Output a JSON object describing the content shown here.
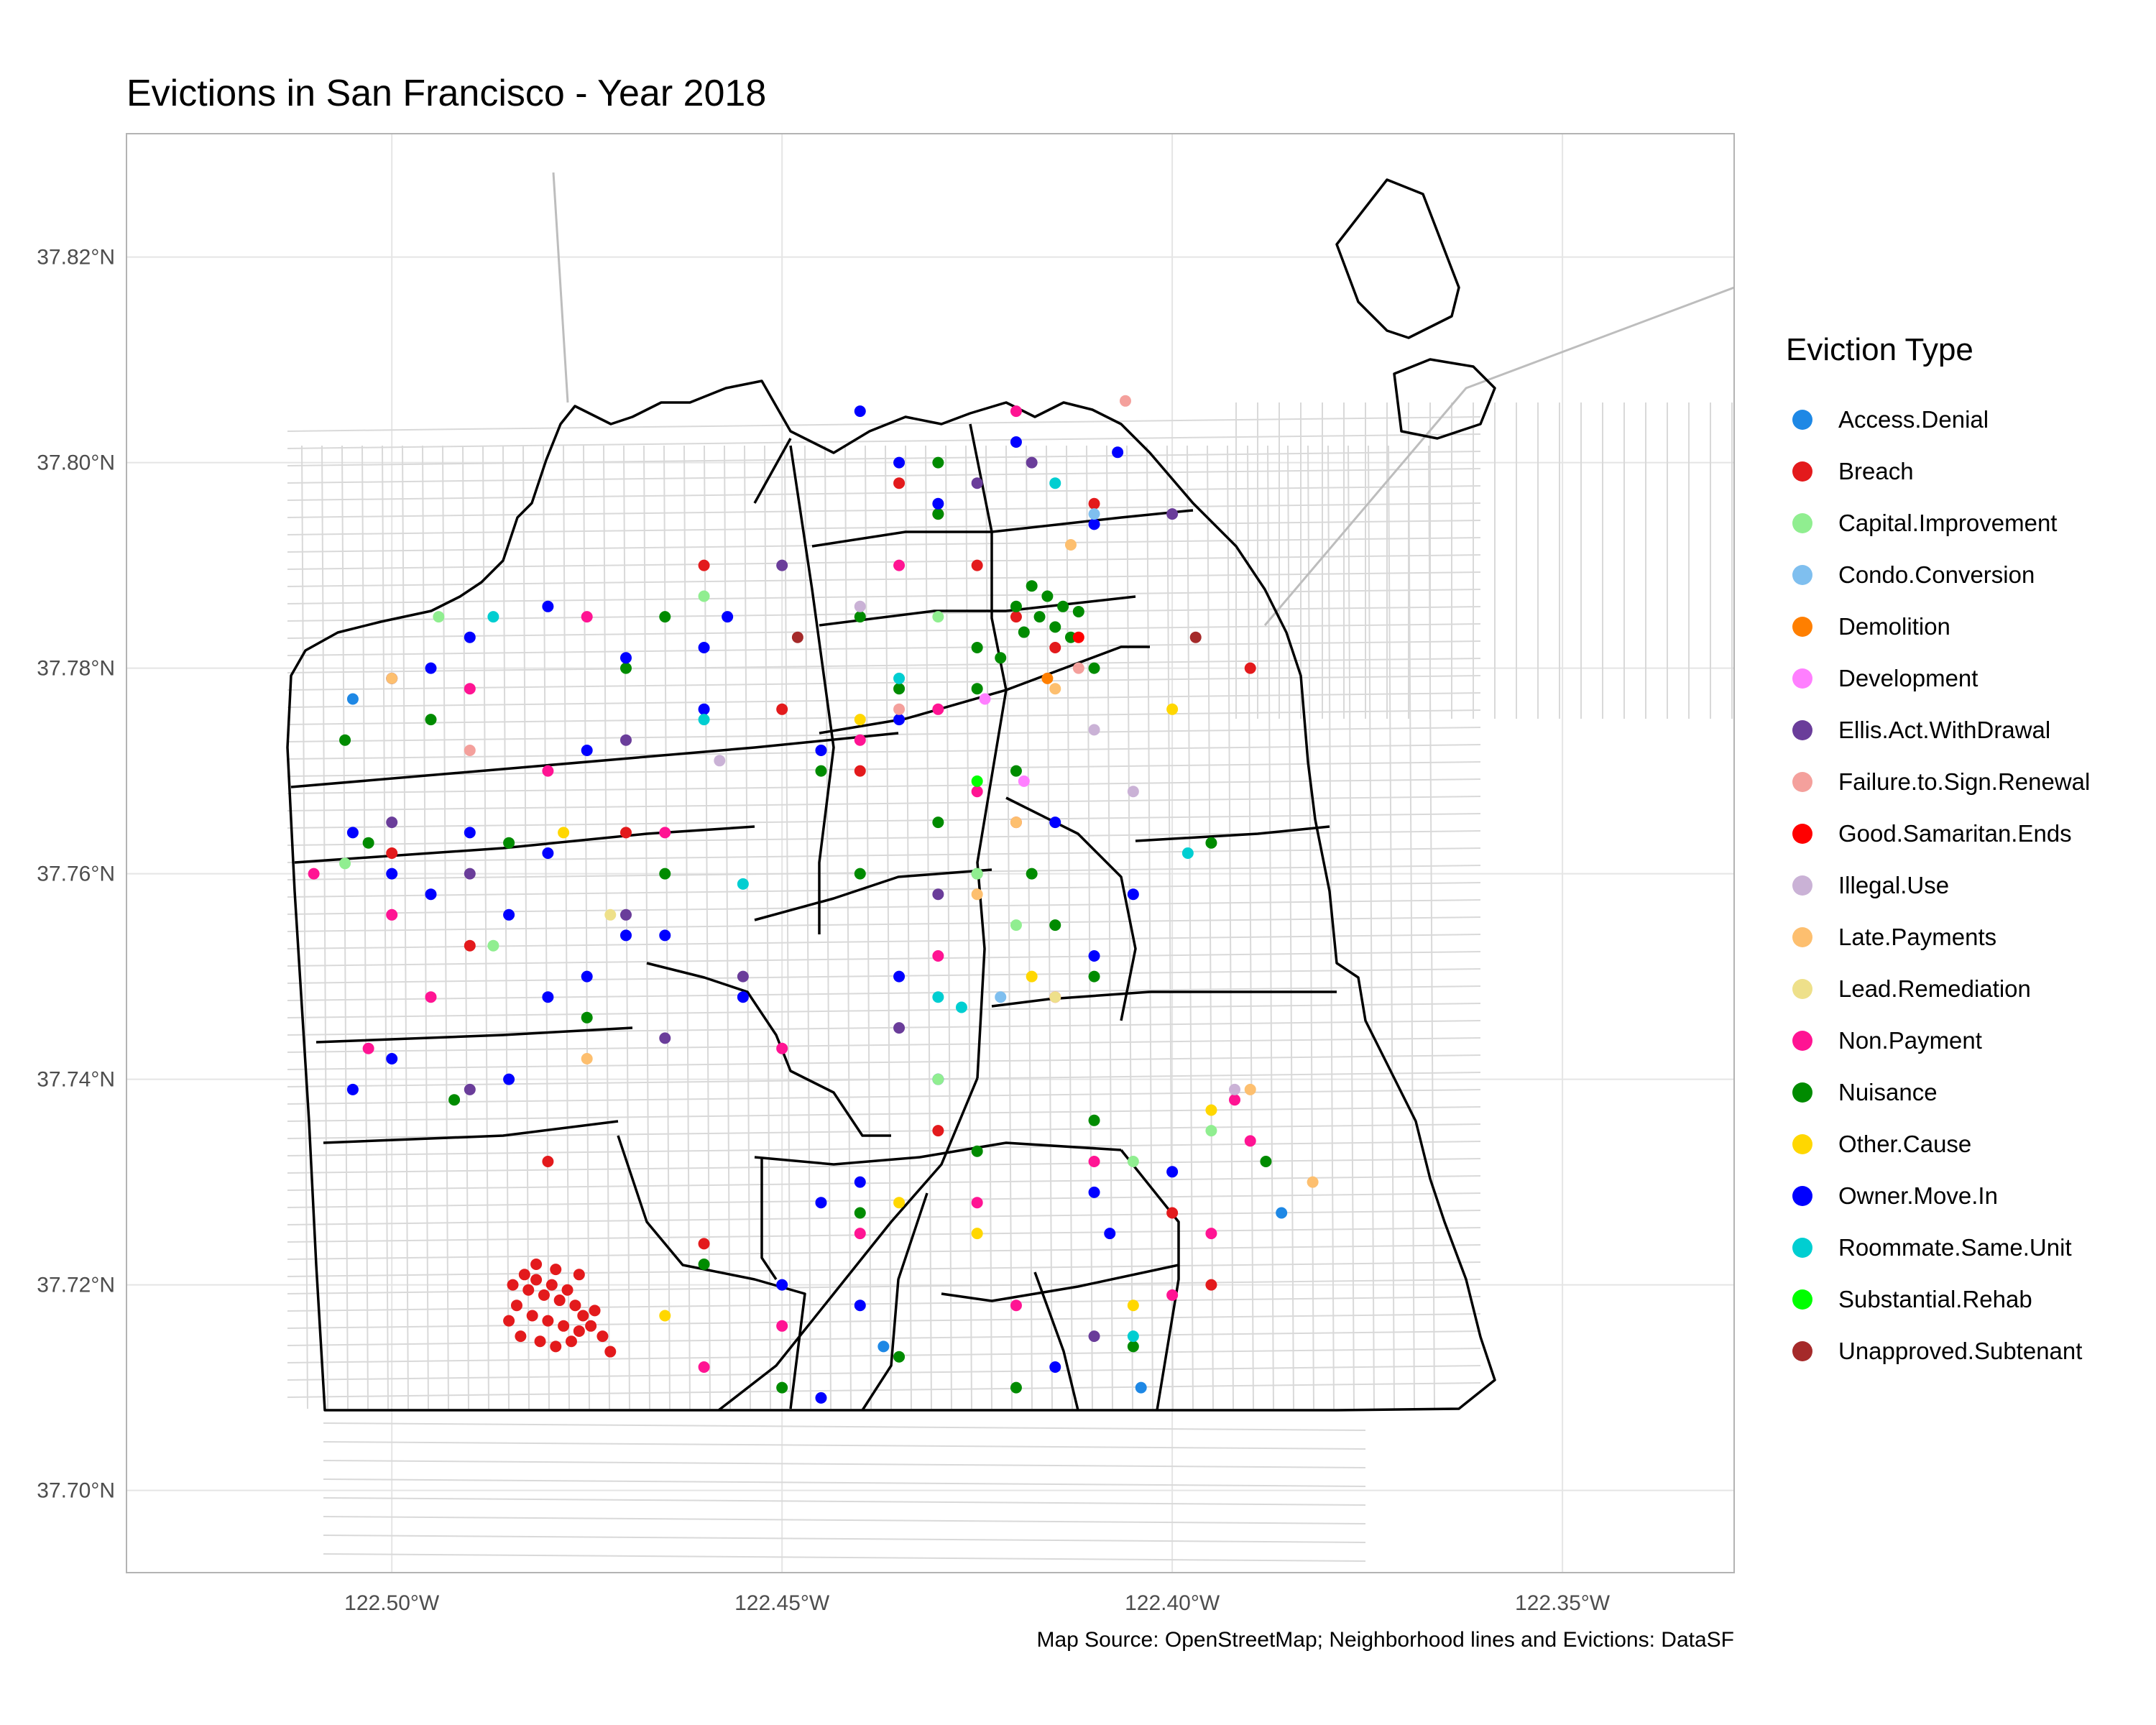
{
  "title": "Evictions in San Francisco - Year 2018",
  "caption": "Map Source: OpenStreetMap; Neighborhood lines and Evictions: DataSF",
  "legend": {
    "title": "Eviction Type",
    "items": [
      {
        "label": "Access.Denial",
        "color": "#1E88E5"
      },
      {
        "label": "Breach",
        "color": "#E31A1C"
      },
      {
        "label": "Capital.Improvement",
        "color": "#90EE90"
      },
      {
        "label": "Condo.Conversion",
        "color": "#7FBFEF"
      },
      {
        "label": "Demolition",
        "color": "#FF7F00"
      },
      {
        "label": "Development",
        "color": "#FF7FFF"
      },
      {
        "label": "Ellis.Act.WithDrawal",
        "color": "#6A3D9A"
      },
      {
        "label": "Failure.to.Sign.Renewal",
        "color": "#F4A09C"
      },
      {
        "label": "Good.Samaritan.Ends",
        "color": "#FF0000"
      },
      {
        "label": "Illegal.Use",
        "color": "#CAB2D6"
      },
      {
        "label": "Late.Payments",
        "color": "#FDBF6F"
      },
      {
        "label": "Lead.Remediation",
        "color": "#EEE08A"
      },
      {
        "label": "Non.Payment",
        "color": "#FF1493"
      },
      {
        "label": "Nuisance",
        "color": "#008B00"
      },
      {
        "label": "Other.Cause",
        "color": "#FFD700"
      },
      {
        "label": "Owner.Move.In",
        "color": "#0000FF"
      },
      {
        "label": "Roommate.Same.Unit",
        "color": "#00CED1"
      },
      {
        "label": "Substantial.Rehab",
        "color": "#00FF00"
      },
      {
        "label": "Unapproved.Subtenant",
        "color": "#A52A2A"
      }
    ]
  },
  "map_data": {
    "x_ticks": [
      {
        "value": -122.5,
        "label": "122.50°W"
      },
      {
        "value": -122.45,
        "label": "122.45°W"
      },
      {
        "value": -122.4,
        "label": "122.40°W"
      },
      {
        "value": -122.35,
        "label": "122.35°W"
      }
    ],
    "y_ticks": [
      {
        "value": 37.7,
        "label": "37.70°N"
      },
      {
        "value": 37.72,
        "label": "37.72°N"
      },
      {
        "value": 37.74,
        "label": "37.74°N"
      },
      {
        "value": 37.76,
        "label": "37.76°N"
      },
      {
        "value": 37.78,
        "label": "37.78°N"
      },
      {
        "value": 37.8,
        "label": "37.80°N"
      },
      {
        "value": 37.82,
        "label": "37.82°N"
      }
    ],
    "xlim": [
      -122.534,
      -122.328
    ],
    "ylim": [
      37.692,
      37.832
    ],
    "colors": {
      "grid": "#E5E5E5",
      "panel_border": "#B3B3B3",
      "streets": "#D9D9D9",
      "neighborhood_lines": "#000000"
    },
    "points": [
      [
        "Breach",
        -122.483,
        37.721
      ],
      [
        "Breach",
        -122.4825,
        37.7195
      ],
      [
        "Breach",
        -122.4815,
        37.7205
      ],
      [
        "Breach",
        -122.4805,
        37.719
      ],
      [
        "Breach",
        -122.4795,
        37.72
      ],
      [
        "Breach",
        -122.4785,
        37.7185
      ],
      [
        "Breach",
        -122.4775,
        37.7195
      ],
      [
        "Breach",
        -122.4765,
        37.718
      ],
      [
        "Breach",
        -122.4755,
        37.717
      ],
      [
        "Breach",
        -122.484,
        37.718
      ],
      [
        "Breach",
        -122.482,
        37.717
      ],
      [
        "Breach",
        -122.48,
        37.7165
      ],
      [
        "Breach",
        -122.478,
        37.716
      ],
      [
        "Breach",
        -122.476,
        37.7155
      ],
      [
        "Breach",
        -122.485,
        37.7165
      ],
      [
        "Breach",
        -122.4835,
        37.715
      ],
      [
        "Breach",
        -122.481,
        37.7145
      ],
      [
        "Breach",
        -122.479,
        37.714
      ],
      [
        "Breach",
        -122.477,
        37.7145
      ],
      [
        "Breach",
        -122.4745,
        37.716
      ],
      [
        "Breach",
        -122.473,
        37.715
      ],
      [
        "Breach",
        -122.474,
        37.7175
      ],
      [
        "Breach",
        -122.476,
        37.721
      ],
      [
        "Breach",
        -122.479,
        37.7215
      ],
      [
        "Breach",
        -122.4815,
        37.722
      ],
      [
        "Breach",
        -122.4845,
        37.72
      ],
      [
        "Breach",
        -122.472,
        37.7135
      ],
      [
        "Breach",
        -122.48,
        37.732
      ],
      [
        "Breach",
        -122.46,
        37.724
      ],
      [
        "Breach",
        -122.435,
        37.798
      ],
      [
        "Breach",
        -122.43,
        37.795
      ],
      [
        "Breach",
        -122.425,
        37.79
      ],
      [
        "Breach",
        -122.42,
        37.785
      ],
      [
        "Breach",
        -122.415,
        37.782
      ],
      [
        "Breach",
        -122.41,
        37.796
      ],
      [
        "Breach",
        -122.44,
        37.77
      ],
      [
        "Breach",
        -122.45,
        37.776
      ],
      [
        "Breach",
        -122.47,
        37.764
      ],
      [
        "Breach",
        -122.5,
        37.762
      ],
      [
        "Breach",
        -122.49,
        37.753
      ],
      [
        "Breach",
        -122.4,
        37.727
      ],
      [
        "Breach",
        -122.395,
        37.72
      ],
      [
        "Breach",
        -122.39,
        37.78
      ],
      [
        "Breach",
        -122.42,
        37.765
      ],
      [
        "Breach",
        -122.43,
        37.735
      ],
      [
        "Breach",
        -122.46,
        37.79
      ],
      [
        "Nuisance",
        -122.418,
        37.788
      ],
      [
        "Nuisance",
        -122.416,
        37.787
      ],
      [
        "Nuisance",
        -122.414,
        37.786
      ],
      [
        "Nuisance",
        -122.417,
        37.785
      ],
      [
        "Nuisance",
        -122.415,
        37.784
      ],
      [
        "Nuisance",
        -122.413,
        37.783
      ],
      [
        "Nuisance",
        -122.42,
        37.786
      ],
      [
        "Nuisance",
        -122.412,
        37.7855
      ],
      [
        "Nuisance",
        -122.419,
        37.7835
      ],
      [
        "Nuisance",
        -122.422,
        37.781
      ],
      [
        "Nuisance",
        -122.41,
        37.78
      ],
      [
        "Nuisance",
        -122.425,
        37.782
      ],
      [
        "Nuisance",
        -122.44,
        37.785
      ],
      [
        "Nuisance",
        -122.43,
        37.795
      ],
      [
        "Nuisance",
        -122.435,
        37.778
      ],
      [
        "Nuisance",
        -122.445,
        37.77
      ],
      [
        "Nuisance",
        -122.42,
        37.77
      ],
      [
        "Nuisance",
        -122.418,
        37.76
      ],
      [
        "Nuisance",
        -122.425,
        37.76
      ],
      [
        "Nuisance",
        -122.415,
        37.755
      ],
      [
        "Nuisance",
        -122.41,
        37.75
      ],
      [
        "Nuisance",
        -122.43,
        37.765
      ],
      [
        "Nuisance",
        -122.44,
        37.76
      ],
      [
        "Nuisance",
        -122.47,
        37.78
      ],
      [
        "Nuisance",
        -122.465,
        37.785
      ],
      [
        "Nuisance",
        -122.495,
        37.775
      ],
      [
        "Nuisance",
        -122.506,
        37.773
      ],
      [
        "Nuisance",
        -122.503,
        37.763
      ],
      [
        "Nuisance",
        -122.485,
        37.763
      ],
      [
        "Nuisance",
        -122.465,
        37.76
      ],
      [
        "Nuisance",
        -122.475,
        37.746
      ],
      [
        "Nuisance",
        -122.492,
        37.738
      ],
      [
        "Nuisance",
        -122.46,
        37.722
      ],
      [
        "Nuisance",
        -122.44,
        37.727
      ],
      [
        "Nuisance",
        -122.425,
        37.733
      ],
      [
        "Nuisance",
        -122.41,
        37.736
      ],
      [
        "Nuisance",
        -122.405,
        37.714
      ],
      [
        "Nuisance",
        -122.42,
        37.71
      ],
      [
        "Nuisance",
        -122.435,
        37.713
      ],
      [
        "Nuisance",
        -122.45,
        37.71
      ],
      [
        "Nuisance",
        -122.395,
        37.763
      ],
      [
        "Nuisance",
        -122.388,
        37.732
      ],
      [
        "Nuisance",
        -122.43,
        37.8
      ],
      [
        "Nuisance",
        -122.425,
        37.778
      ],
      [
        "Owner.Move.In",
        -122.5,
        37.779
      ],
      [
        "Owner.Move.In",
        -122.495,
        37.78
      ],
      [
        "Owner.Move.In",
        -122.49,
        37.783
      ],
      [
        "Owner.Move.In",
        -122.48,
        37.786
      ],
      [
        "Owner.Move.In",
        -122.47,
        37.781
      ],
      [
        "Owner.Move.In",
        -122.46,
        37.782
      ],
      [
        "Owner.Move.In",
        -122.457,
        37.785
      ],
      [
        "Owner.Move.In",
        -122.505,
        37.764
      ],
      [
        "Owner.Move.In",
        -122.5,
        37.76
      ],
      [
        "Owner.Move.In",
        -122.495,
        37.758
      ],
      [
        "Owner.Move.In",
        -122.49,
        37.764
      ],
      [
        "Owner.Move.In",
        -122.485,
        37.756
      ],
      [
        "Owner.Move.In",
        -122.48,
        37.762
      ],
      [
        "Owner.Move.In",
        -122.475,
        37.75
      ],
      [
        "Owner.Move.In",
        -122.47,
        37.754
      ],
      [
        "Owner.Move.In",
        -122.465,
        37.754
      ],
      [
        "Owner.Move.In",
        -122.48,
        37.748
      ],
      [
        "Owner.Move.In",
        -122.485,
        37.74
      ],
      [
        "Owner.Move.In",
        -122.5,
        37.742
      ],
      [
        "Owner.Move.In",
        -122.505,
        37.739
      ],
      [
        "Owner.Move.In",
        -122.44,
        37.805
      ],
      [
        "Owner.Move.In",
        -122.435,
        37.8
      ],
      [
        "Owner.Move.In",
        -122.43,
        37.796
      ],
      [
        "Owner.Move.In",
        -122.42,
        37.802
      ],
      [
        "Owner.Move.In",
        -122.41,
        37.794
      ],
      [
        "Owner.Move.In",
        -122.407,
        37.801
      ],
      [
        "Owner.Move.In",
        -122.445,
        37.772
      ],
      [
        "Owner.Move.In",
        -122.435,
        37.775
      ],
      [
        "Owner.Move.In",
        -122.415,
        37.765
      ],
      [
        "Owner.Move.In",
        -122.405,
        37.758
      ],
      [
        "Owner.Move.In",
        -122.41,
        37.752
      ],
      [
        "Owner.Move.In",
        -122.435,
        37.75
      ],
      [
        "Owner.Move.In",
        -122.44,
        37.73
      ],
      [
        "Owner.Move.In",
        -122.445,
        37.728
      ],
      [
        "Owner.Move.In",
        -122.45,
        37.72
      ],
      [
        "Owner.Move.In",
        -122.44,
        37.718
      ],
      [
        "Owner.Move.In",
        -122.41,
        37.729
      ],
      [
        "Owner.Move.In",
        -122.408,
        37.725
      ],
      [
        "Owner.Move.In",
        -122.415,
        37.712
      ],
      [
        "Owner.Move.In",
        -122.445,
        37.709
      ],
      [
        "Owner.Move.In",
        -122.4,
        37.731
      ],
      [
        "Owner.Move.In",
        -122.46,
        37.776
      ],
      [
        "Owner.Move.In",
        -122.475,
        37.772
      ],
      [
        "Owner.Move.In",
        -122.43,
        37.74
      ],
      [
        "Owner.Move.In",
        -122.455,
        37.748
      ],
      [
        "Non.Payment",
        -122.51,
        37.76
      ],
      [
        "Non.Payment",
        -122.5,
        37.756
      ],
      [
        "Non.Payment",
        -122.495,
        37.748
      ],
      [
        "Non.Payment",
        -122.503,
        37.743
      ],
      [
        "Non.Payment",
        -122.49,
        37.778
      ],
      [
        "Non.Payment",
        -122.48,
        37.77
      ],
      [
        "Non.Payment",
        -122.465,
        37.764
      ],
      [
        "Non.Payment",
        -122.44,
        37.773
      ],
      [
        "Non.Payment",
        -122.43,
        37.776
      ],
      [
        "Non.Payment",
        -122.425,
        37.768
      ],
      [
        "Non.Payment",
        -122.43,
        37.752
      ],
      [
        "Non.Payment",
        -122.415,
        37.748
      ],
      [
        "Non.Payment",
        -122.41,
        37.732
      ],
      [
        "Non.Payment",
        -122.425,
        37.728
      ],
      [
        "Non.Payment",
        -122.44,
        37.725
      ],
      [
        "Non.Payment",
        -122.46,
        37.712
      ],
      [
        "Non.Payment",
        -122.45,
        37.716
      ],
      [
        "Non.Payment",
        -122.42,
        37.718
      ],
      [
        "Non.Payment",
        -122.395,
        37.725
      ],
      [
        "Non.Payment",
        -122.39,
        37.734
      ],
      [
        "Non.Payment",
        -122.392,
        37.738
      ],
      [
        "Non.Payment",
        -122.4,
        37.719
      ],
      [
        "Non.Payment",
        -122.42,
        37.805
      ],
      [
        "Non.Payment",
        -122.435,
        37.79
      ],
      [
        "Non.Payment",
        -122.475,
        37.785
      ],
      [
        "Non.Payment",
        -122.45,
        37.743
      ],
      [
        "Ellis.Act.WithDrawal",
        -122.5,
        37.765
      ],
      [
        "Ellis.Act.WithDrawal",
        -122.49,
        37.76
      ],
      [
        "Ellis.Act.WithDrawal",
        -122.47,
        37.773
      ],
      [
        "Ellis.Act.WithDrawal",
        -122.455,
        37.75
      ],
      [
        "Ellis.Act.WithDrawal",
        -122.45,
        37.79
      ],
      [
        "Ellis.Act.WithDrawal",
        -122.425,
        37.798
      ],
      [
        "Ellis.Act.WithDrawal",
        -122.418,
        37.8
      ],
      [
        "Ellis.Act.WithDrawal",
        -122.4,
        37.795
      ],
      [
        "Ellis.Act.WithDrawal",
        -122.43,
        37.758
      ],
      [
        "Ellis.Act.WithDrawal",
        -122.435,
        37.745
      ],
      [
        "Ellis.Act.WithDrawal",
        -122.41,
        37.715
      ],
      [
        "Ellis.Act.WithDrawal",
        -122.49,
        37.739
      ],
      [
        "Ellis.Act.WithDrawal",
        -122.465,
        37.744
      ],
      [
        "Ellis.Act.WithDrawal",
        -122.47,
        37.756
      ],
      [
        "Capital.Improvement",
        -122.494,
        37.785
      ],
      [
        "Capital.Improvement",
        -122.506,
        37.761
      ],
      [
        "Capital.Improvement",
        -122.487,
        37.753
      ],
      [
        "Capital.Improvement",
        -122.46,
        37.787
      ],
      [
        "Capital.Improvement",
        -122.43,
        37.785
      ],
      [
        "Capital.Improvement",
        -122.425,
        37.76
      ],
      [
        "Capital.Improvement",
        -122.42,
        37.755
      ],
      [
        "Capital.Improvement",
        -122.395,
        37.735
      ],
      [
        "Capital.Improvement",
        -122.43,
        37.74
      ],
      [
        "Capital.Improvement",
        -122.405,
        37.732
      ],
      [
        "Roommate.Same.Unit",
        -122.487,
        37.785
      ],
      [
        "Roommate.Same.Unit",
        -122.46,
        37.775
      ],
      [
        "Roommate.Same.Unit",
        -122.455,
        37.759
      ],
      [
        "Roommate.Same.Unit",
        -122.43,
        37.748
      ],
      [
        "Roommate.Same.Unit",
        -122.427,
        37.747
      ],
      [
        "Roommate.Same.Unit",
        -122.405,
        37.715
      ],
      [
        "Roommate.Same.Unit",
        -122.398,
        37.762
      ],
      [
        "Roommate.Same.Unit",
        -122.435,
        37.779
      ],
      [
        "Roommate.Same.Unit",
        -122.415,
        37.798
      ],
      [
        "Late.Payments",
        -122.5,
        37.779
      ],
      [
        "Late.Payments",
        -122.475,
        37.742
      ],
      [
        "Late.Payments",
        -122.425,
        37.758
      ],
      [
        "Late.Payments",
        -122.39,
        37.739
      ],
      [
        "Late.Payments",
        -122.382,
        37.73
      ],
      [
        "Late.Payments",
        -122.415,
        37.778
      ],
      [
        "Late.Payments",
        -122.42,
        37.765
      ],
      [
        "Late.Payments",
        -122.413,
        37.792
      ],
      [
        "Other.Cause",
        -122.465,
        37.717
      ],
      [
        "Other.Cause",
        -122.435,
        37.728
      ],
      [
        "Other.Cause",
        -122.425,
        37.725
      ],
      [
        "Other.Cause",
        -122.395,
        37.737
      ],
      [
        "Other.Cause",
        -122.405,
        37.718
      ],
      [
        "Other.Cause",
        -122.44,
        37.775
      ],
      [
        "Other.Cause",
        -122.418,
        37.75
      ],
      [
        "Other.Cause",
        -122.4,
        37.776
      ],
      [
        "Other.Cause",
        -122.478,
        37.764
      ],
      [
        "Illegal.Use",
        -122.392,
        37.739
      ],
      [
        "Illegal.Use",
        -122.44,
        37.786
      ],
      [
        "Illegal.Use",
        -122.458,
        37.771
      ],
      [
        "Illegal.Use",
        -122.405,
        37.768
      ],
      [
        "Illegal.Use",
        -122.41,
        37.774
      ],
      [
        "Failure.to.Sign.Renewal",
        -122.406,
        37.806
      ],
      [
        "Failure.to.Sign.Renewal",
        -122.435,
        37.776
      ],
      [
        "Failure.to.Sign.Renewal",
        -122.49,
        37.772
      ],
      [
        "Failure.to.Sign.Renewal",
        -122.412,
        37.78
      ],
      [
        "Unapproved.Subtenant",
        -122.397,
        37.783
      ],
      [
        "Unapproved.Subtenant",
        -122.448,
        37.783
      ],
      [
        "Access.Denial",
        -122.386,
        37.727
      ],
      [
        "Access.Denial",
        -122.404,
        37.71
      ],
      [
        "Access.Denial",
        -122.505,
        37.777
      ],
      [
        "Access.Denial",
        -122.437,
        37.714
      ],
      [
        "Condo.Conversion",
        -122.41,
        37.795
      ],
      [
        "Condo.Conversion",
        -122.422,
        37.748
      ],
      [
        "Development",
        -122.424,
        37.777
      ],
      [
        "Development",
        -122.419,
        37.769
      ],
      [
        "Lead.Remediation",
        -122.472,
        37.756
      ],
      [
        "Lead.Remediation",
        -122.415,
        37.748
      ],
      [
        "Demolition",
        -122.416,
        37.779
      ],
      [
        "Good.Samaritan.Ends",
        -122.412,
        37.783
      ],
      [
        "Substantial.Rehab",
        -122.425,
        37.769
      ]
    ]
  }
}
